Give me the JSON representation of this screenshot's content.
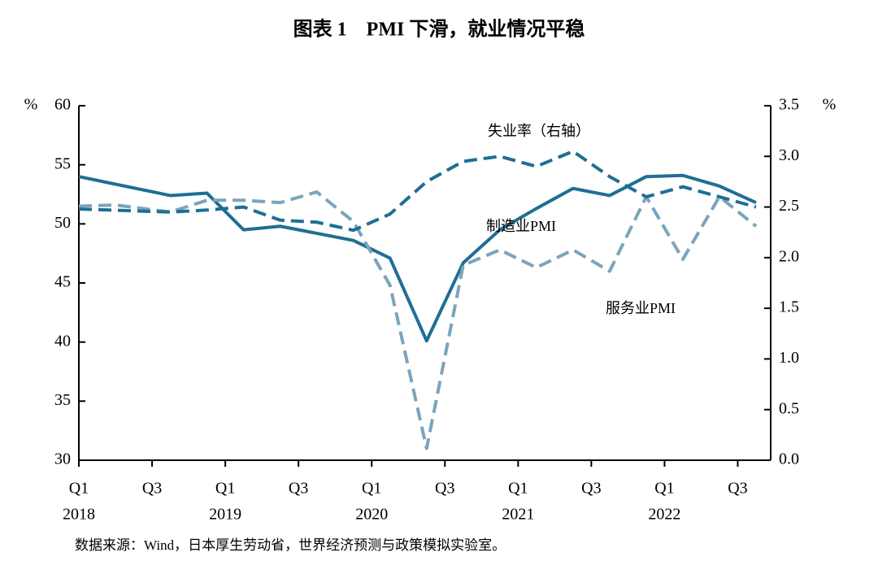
{
  "chart_data": {
    "type": "line",
    "title": "图表 1　PMI 下滑，就业情况平稳",
    "source": "数据来源：Wind，日本厚生劳动省，世界经济预测与政策模拟实验室。",
    "y_unit": "%",
    "y2_unit": "%",
    "xlim": [
      0,
      18.9
    ],
    "xticks": [
      {
        "value": 0,
        "label": "Q1"
      },
      {
        "value": 2,
        "label": "Q3"
      },
      {
        "value": 4,
        "label": "Q1"
      },
      {
        "value": 6,
        "label": "Q3"
      },
      {
        "value": 8,
        "label": "Q1"
      },
      {
        "value": 10,
        "label": "Q3"
      },
      {
        "value": 12,
        "label": "Q1"
      },
      {
        "value": 14,
        "label": "Q3"
      },
      {
        "value": 16,
        "label": "Q1"
      },
      {
        "value": 18,
        "label": "Q3"
      }
    ],
    "xtick_years": [
      {
        "value": 0,
        "label": "2018"
      },
      {
        "value": 4,
        "label": "2019"
      },
      {
        "value": 8,
        "label": "2020"
      },
      {
        "value": 12,
        "label": "2021"
      },
      {
        "value": 16,
        "label": "2022"
      }
    ],
    "ylim": [
      30,
      60
    ],
    "yticks": [
      30,
      35,
      40,
      45,
      50,
      55,
      60
    ],
    "y2lim": [
      0,
      3.5
    ],
    "y2ticks": [
      {
        "value": 0,
        "label": "0.0"
      },
      0.5,
      {
        "value": 1,
        "label": "1.0"
      },
      1.5,
      {
        "value": 2,
        "label": "2.0"
      },
      2.5,
      {
        "value": 3,
        "label": "3.0"
      },
      3.5
    ],
    "series": [
      {
        "name": "制造业PMI",
        "color": "#1f6e96",
        "dash": "solid",
        "x": [
          0,
          2.5,
          3.5,
          4.5,
          5.5,
          6.5,
          7.5,
          8.5,
          9.5,
          10.5,
          11.5,
          12.5,
          13.5,
          14.5,
          15.5,
          16.5,
          17.5,
          18.5
        ],
        "values": [
          54.0,
          52.4,
          52.6,
          49.5,
          49.8,
          49.2,
          48.6,
          47.1,
          40.1,
          46.7,
          49.5,
          51.3,
          53.0,
          52.4,
          54.0,
          54.1,
          53.2,
          51.8
        ]
      },
      {
        "name": "服务业PMI",
        "color": "#7ba4bd",
        "dash": "dashed",
        "x": [
          0,
          1,
          2.5,
          3.5,
          4.5,
          5.5,
          6.5,
          7.5,
          8.5,
          9.5,
          10.5,
          11.5,
          12.5,
          13.5,
          14.5,
          15.5,
          16.5,
          17.5,
          18.5
        ],
        "values": [
          51.5,
          51.6,
          51.0,
          52.0,
          52.0,
          51.8,
          52.7,
          50.2,
          44.8,
          31.0,
          46.5,
          47.8,
          46.3,
          47.8,
          46.0,
          52.3,
          47.0,
          52.3,
          49.8
        ]
      },
      {
        "name": "失业率（右轴）",
        "color": "#1f6e96",
        "dash": "dashed",
        "axis": "y2",
        "x": [
          0,
          2.5,
          3.5,
          4.5,
          5.5,
          6.5,
          7.5,
          8.5,
          9.5,
          10.5,
          11.5,
          12.5,
          13.5,
          14.5,
          15.5,
          16.5,
          17.5,
          18.5
        ],
        "values": [
          2.48,
          2.45,
          2.47,
          2.5,
          2.37,
          2.35,
          2.27,
          2.43,
          2.75,
          2.95,
          3.0,
          2.9,
          3.05,
          2.8,
          2.6,
          2.7,
          2.6,
          2.5
        ]
      }
    ]
  }
}
